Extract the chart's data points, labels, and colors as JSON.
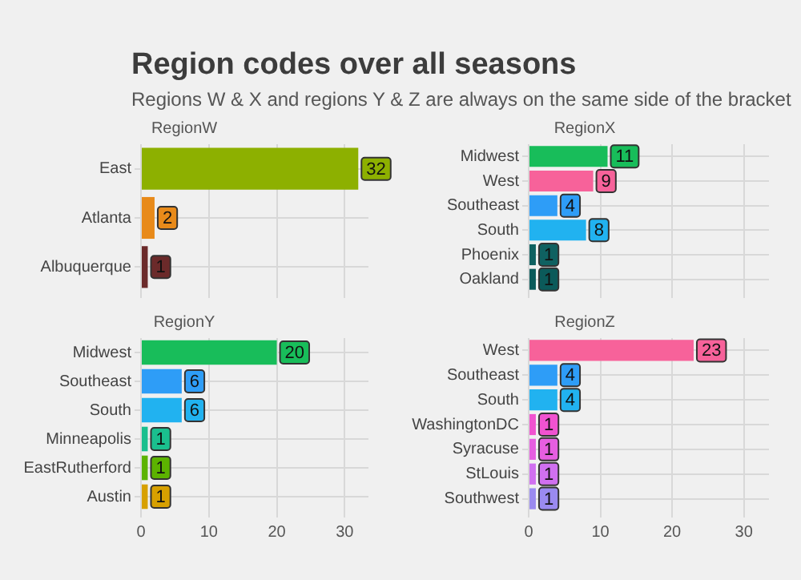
{
  "chart_data": [
    {
      "type": "other",
      "title": "Region codes over all seasons",
      "subtitle": "Regions W & X and regions Y & Z are always on the same side of the bracket"
    },
    {
      "type": "bar",
      "orientation": "horizontal",
      "title": "RegionW",
      "categories": [
        "East",
        "Atlanta",
        "Albuquerque"
      ],
      "values": [
        32,
        2,
        1
      ],
      "colors": [
        "#8db000",
        "#e88a1a",
        "#6b2a2a"
      ],
      "xlim": [
        0,
        33.5
      ],
      "xticks": [
        0,
        10,
        20,
        30
      ],
      "grid": true,
      "data_labels": true,
      "tick_labels": "y"
    },
    {
      "type": "bar",
      "orientation": "horizontal",
      "title": "RegionX",
      "categories": [
        "Midwest",
        "West",
        "Southeast",
        "South",
        "Phoenix",
        "Oakland"
      ],
      "values": [
        11,
        9,
        4,
        8,
        1,
        1
      ],
      "colors": [
        "#18bd5a",
        "#f7629a",
        "#2e9df7",
        "#21b2f0",
        "#0f6161",
        "#0b5a5a"
      ],
      "xlim": [
        0,
        33.5
      ],
      "xticks": [
        0,
        10,
        20,
        30
      ],
      "grid": true,
      "data_labels": true,
      "tick_labels": "y"
    },
    {
      "type": "bar",
      "orientation": "horizontal",
      "title": "RegionY",
      "categories": [
        "Midwest",
        "Southeast",
        "South",
        "Minneapolis",
        "EastRutherford",
        "Austin"
      ],
      "values": [
        20,
        6,
        6,
        1,
        1,
        1
      ],
      "colors": [
        "#18bd5a",
        "#2e9df7",
        "#21b2f0",
        "#1abf8e",
        "#5cb300",
        "#d7a000"
      ],
      "xlim": [
        0,
        33.5
      ],
      "xticks": [
        0,
        10,
        20,
        30
      ],
      "grid": true,
      "data_labels": true
    },
    {
      "type": "bar",
      "orientation": "horizontal",
      "title": "RegionZ",
      "categories": [
        "West",
        "Southeast",
        "South",
        "WashingtonDC",
        "Syracuse",
        "StLouis",
        "Southwest"
      ],
      "values": [
        23,
        4,
        4,
        1,
        1,
        1,
        1
      ],
      "colors": [
        "#f7629a",
        "#2e9df7",
        "#21b2f0",
        "#f053d0",
        "#e65ee0",
        "#d070f0",
        "#9a8af0"
      ],
      "xlim": [
        0,
        33.5
      ],
      "xticks": [
        0,
        10,
        20,
        30
      ],
      "grid": true,
      "data_labels": true
    }
  ]
}
